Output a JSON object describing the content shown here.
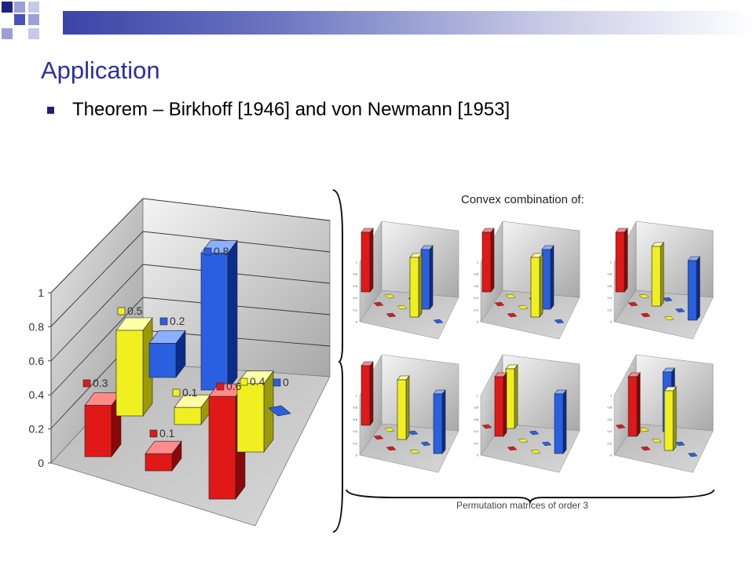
{
  "slide": {
    "title": "Application",
    "bullet": "Theorem – Birkhoff [1946] and von Newmann [1953]",
    "convex_caption": "Convex combination of:",
    "permutation_caption": "Permutation matrices of order 3"
  },
  "colors": {
    "red": "#e01818",
    "yellow": "#f0f020",
    "blue": "#2a5fe0",
    "title": "#2b2fa0"
  },
  "chart_data": [
    {
      "type": "bar",
      "subtype": "3d-bar-matrix",
      "rows": 3,
      "cols": 3,
      "values": [
        [
          0.3,
          0.5,
          0.2
        ],
        [
          0.1,
          0.1,
          0.8
        ],
        [
          0.6,
          0.4,
          0
        ]
      ],
      "data_labels": [
        [
          "0.3",
          "0.5",
          "0.2"
        ],
        [
          "0.1",
          "0.1",
          "0.8"
        ],
        [
          "0.6",
          "0.4",
          "0"
        ]
      ],
      "column_colors": [
        "red",
        "yellow",
        "blue"
      ],
      "y_ticks": [
        "0",
        "0.2",
        "0.4",
        "0.6",
        "0.8",
        "1"
      ],
      "ylim": [
        0,
        1
      ]
    },
    {
      "type": "bar",
      "subtype": "permutation-matrix",
      "values": [
        [
          1,
          0,
          0
        ],
        [
          0,
          0,
          1
        ],
        [
          0,
          1,
          0
        ]
      ],
      "y_ticks": [
        "0",
        "0.2",
        "0.4",
        "0.6",
        "0.8",
        "1"
      ],
      "ylim": [
        0,
        1
      ]
    },
    {
      "type": "bar",
      "subtype": "permutation-matrix",
      "values": [
        [
          1,
          0,
          0
        ],
        [
          0,
          0,
          1
        ],
        [
          0,
          1,
          0
        ]
      ],
      "y_ticks": [
        "0",
        "0.2",
        "0.4",
        "0.6",
        "0.8",
        "1"
      ],
      "ylim": [
        0,
        1
      ]
    },
    {
      "type": "bar",
      "subtype": "permutation-matrix",
      "values": [
        [
          1,
          0,
          0
        ],
        [
          0,
          1,
          0
        ],
        [
          0,
          0,
          1
        ]
      ],
      "y_ticks": [
        "0",
        "0.2",
        "0.4",
        "0.6",
        "0.8",
        "1"
      ],
      "ylim": [
        0,
        1
      ]
    },
    {
      "type": "bar",
      "subtype": "permutation-matrix",
      "values": [
        [
          1,
          0,
          0
        ],
        [
          0,
          1,
          0
        ],
        [
          0,
          0,
          1
        ]
      ],
      "y_ticks": [
        "0",
        "0.2",
        "0.4",
        "0.6",
        "0.8",
        "1"
      ],
      "ylim": [
        0,
        1
      ]
    },
    {
      "type": "bar",
      "subtype": "permutation-matrix",
      "values": [
        [
          0,
          1,
          0
        ],
        [
          1,
          0,
          0
        ],
        [
          0,
          0,
          1
        ]
      ],
      "y_ticks": [
        "0",
        "0.2",
        "0.4",
        "0.6",
        "0.8",
        "1"
      ],
      "ylim": [
        0,
        1
      ]
    },
    {
      "type": "bar",
      "subtype": "permutation-matrix",
      "values": [
        [
          0,
          0,
          1
        ],
        [
          1,
          0,
          0
        ],
        [
          0,
          1,
          0
        ]
      ],
      "y_ticks": [
        "0",
        "0.2",
        "0.4",
        "0.6",
        "0.8",
        "1"
      ],
      "ylim": [
        0,
        1
      ]
    }
  ]
}
